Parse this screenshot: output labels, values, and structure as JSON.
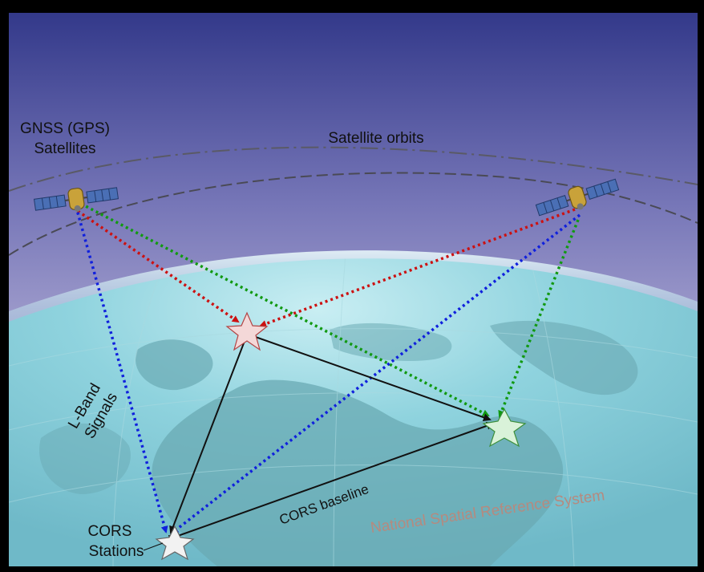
{
  "labels": {
    "satellites_line1": "GNSS (GPS)",
    "satellites_line2": "Satellites",
    "orbits": "Satellite orbits",
    "signals_line1": "L-Band",
    "signals_line2": "Signals",
    "baseline": "CORS baseline",
    "stations_line1": "CORS",
    "stations_line2": "Stations",
    "nsrs": "National Spatial Reference System"
  },
  "icons": {
    "satellite": "satellite-icon",
    "station": "star-icon"
  },
  "colors": {
    "sky_top": "#3b3f8f",
    "sky_bottom": "#c8c3de",
    "earth": "#7ac9d6",
    "land": "#5fa0a8",
    "signal_red": "#cc1111",
    "signal_green": "#119911",
    "signal_blue": "#1020dd",
    "baseline": "#111111",
    "orbit": "#555555",
    "nsrs_text": "#b58a7f"
  }
}
